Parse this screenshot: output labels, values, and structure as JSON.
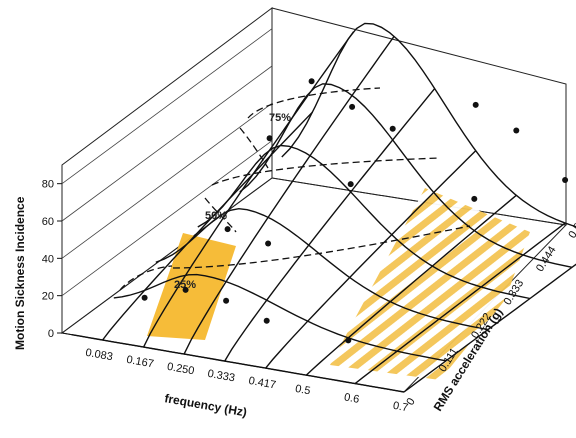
{
  "chart_data": {
    "type": "surface3d",
    "zlabel": "Motion Sickness Incidence",
    "xlabel": "frequency (Hz)",
    "ylabel": "RMS acceleration (g)",
    "z_ticks": [
      "0",
      "20",
      "40",
      "60",
      "80"
    ],
    "x_ticks": [
      "0.083",
      "0.167",
      "0.250",
      "0.333",
      "0.417",
      "0.5",
      "0.6",
      "0.7"
    ],
    "y_ticks": [
      "0",
      "0.111",
      "0.222",
      "0.333",
      "0.444",
      "0.555"
    ],
    "contours": [
      "25%",
      "50%",
      "75%"
    ],
    "highlight_colors": {
      "band": "#f5b82e",
      "stripes": "#f3c453"
    },
    "surface_peak": {
      "frequency_hz": 0.167,
      "rms_acceleration_g": 0.555,
      "incidence": 90
    },
    "highlights": [
      {
        "kind": "solid-band",
        "frequency_hz": [
          0.167,
          0.25
        ]
      },
      {
        "kind": "striped-region",
        "frequency_hz": [
          0.5,
          0.7
        ]
      }
    ],
    "observed_points": [
      {
        "frequency_hz": 0.083,
        "rms_acceleration_g": 0.111,
        "incidence": 6
      },
      {
        "frequency_hz": 0.167,
        "rms_acceleration_g": 0.111,
        "incidence": 14
      },
      {
        "frequency_hz": 0.25,
        "rms_acceleration_g": 0.111,
        "incidence": 12
      },
      {
        "frequency_hz": 0.333,
        "rms_acceleration_g": 0.111,
        "incidence": 5
      },
      {
        "frequency_hz": 0.5,
        "rms_acceleration_g": 0.111,
        "incidence": 2
      },
      {
        "frequency_hz": 0.167,
        "rms_acceleration_g": 0.222,
        "incidence": 30
      },
      {
        "frequency_hz": 0.25,
        "rms_acceleration_g": 0.222,
        "incidence": 26
      },
      {
        "frequency_hz": 0.167,
        "rms_acceleration_g": 0.333,
        "incidence": 62
      },
      {
        "frequency_hz": 0.333,
        "rms_acceleration_g": 0.333,
        "incidence": 45
      },
      {
        "frequency_hz": 0.167,
        "rms_acceleration_g": 0.444,
        "incidence": 76
      },
      {
        "frequency_hz": 0.25,
        "rms_acceleration_g": 0.444,
        "incidence": 66
      },
      {
        "frequency_hz": 0.333,
        "rms_acceleration_g": 0.444,
        "incidence": 58
      },
      {
        "frequency_hz": 0.5,
        "rms_acceleration_g": 0.444,
        "incidence": 28
      },
      {
        "frequency_hz": 0.417,
        "rms_acceleration_g": 0.555,
        "incidence": 58
      },
      {
        "frequency_hz": 0.5,
        "rms_acceleration_g": 0.555,
        "incidence": 48
      },
      {
        "frequency_hz": 0.6,
        "rms_acceleration_g": 0.555,
        "incidence": 26
      },
      {
        "frequency_hz": 0.7,
        "rms_acceleration_g": 0.555,
        "incidence": 8
      }
    ],
    "grid": true,
    "legend": "none"
  }
}
